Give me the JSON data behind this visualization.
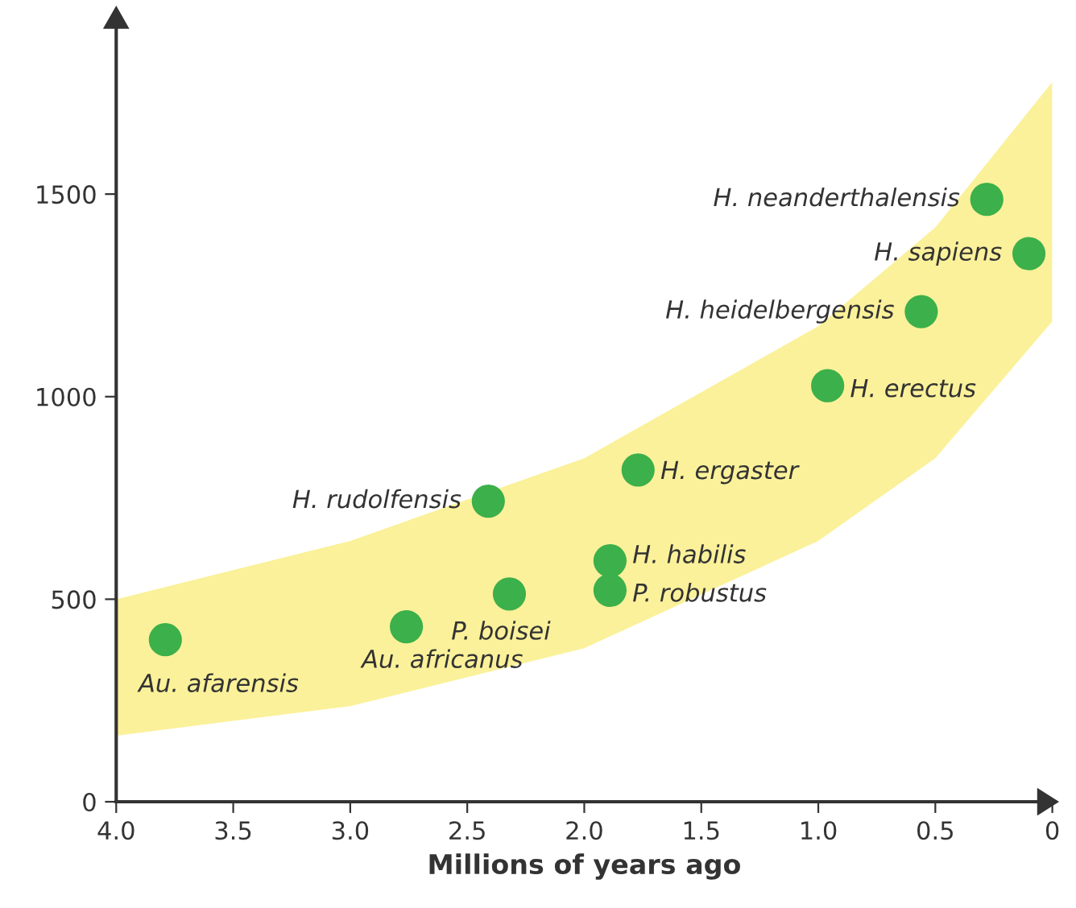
{
  "chart_data": {
    "type": "scatter",
    "xlabel": "Millions of years ago",
    "xlim": [
      4.0,
      0
    ],
    "ylim": [
      0,
      1950
    ],
    "xticks": [
      {
        "value": 4.0,
        "label": "4.0"
      },
      {
        "value": 3.5,
        "label": "3.5"
      },
      {
        "value": 3.0,
        "label": "3.0"
      },
      {
        "value": 2.5,
        "label": "2.5"
      },
      {
        "value": 2.0,
        "label": "2.0"
      },
      {
        "value": 1.5,
        "label": "1.5"
      },
      {
        "value": 1.0,
        "label": "1.0"
      },
      {
        "value": 0.5,
        "label": "0.5"
      },
      0
    ],
    "yticks": [
      0,
      500,
      1000,
      1500
    ],
    "grid": false,
    "marker": "circle",
    "series": [
      {
        "type": "area",
        "color": "#fbf19a",
        "x": [
          4.0,
          3.0,
          2.0,
          1.0,
          0.5,
          0.0
        ],
        "values": [
          null,
          null,
          null,
          null,
          null,
          null
        ],
        "lower": [
          163,
          236,
          379,
          644,
          848,
          1186
        ],
        "upper": [
          500,
          644,
          848,
          1174,
          1418,
          1777
        ]
      },
      {
        "color": "#3cb04a",
        "x": [
          3.79,
          2.76,
          2.32,
          2.41,
          1.89,
          1.89,
          1.77,
          0.96,
          0.56,
          0.28,
          0.1
        ],
        "values": [
          400,
          432,
          513,
          742,
          595,
          522,
          819,
          1027,
          1210,
          1487,
          1353
        ]
      }
    ],
    "annotations": [
      {
        "text": "Au. afarensis",
        "x": 3.79,
        "y": 400
      },
      {
        "text": "Au. africanus",
        "x": 2.76,
        "y": 432
      },
      {
        "text": "P. boisei",
        "x": 2.32,
        "y": 513
      },
      {
        "text": "H. rudolfensis",
        "x": 2.41,
        "y": 742
      },
      {
        "text": "H. habilis",
        "x": 1.89,
        "y": 595
      },
      {
        "text": "P. robustus",
        "x": 1.89,
        "y": 522
      },
      {
        "text": "H. ergaster",
        "x": 1.77,
        "y": 819
      },
      {
        "text": "H. erectus",
        "x": 0.96,
        "y": 1027
      },
      {
        "text": "H. heidelbergensis",
        "x": 0.56,
        "y": 1210
      },
      {
        "text": "H. neanderthalensis",
        "x": 0.28,
        "y": 1487
      },
      {
        "text": "H. sapiens",
        "x": 0.1,
        "y": 1353
      }
    ]
  }
}
